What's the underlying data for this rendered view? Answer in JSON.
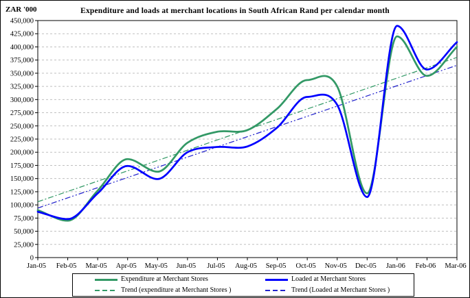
{
  "chart_data": {
    "type": "line",
    "title": "Expenditure and loads at merchant locations in South African Rand per calendar month",
    "y_axis_unit": "ZAR '000",
    "xlabel": "",
    "ylabel": "",
    "ylim": [
      0,
      450000
    ],
    "y_tick_step": 25000,
    "y_tick_labels": [
      "0",
      "25,000",
      "50,000",
      "75,000",
      "100,000",
      "125,000",
      "150,000",
      "175,000",
      "200,000",
      "225,000",
      "250,000",
      "275,000",
      "300,000",
      "325,000",
      "350,000",
      "375,000",
      "400,000",
      "425,000",
      "450,000"
    ],
    "grid": "horizontal-dashed",
    "gridline_color": "#bfbfbf",
    "axis_color": "#000000",
    "legend_position": "bottom",
    "categories": [
      "Jan-05",
      "Feb-05",
      "Mar-05",
      "Apr-05",
      "May-05",
      "Jun-05",
      "Jul-05",
      "Aug-05",
      "Sep-05",
      "Oct-05",
      "Nov-05",
      "Dec-05",
      "Jan-06",
      "Feb-06",
      "Mar-06"
    ],
    "series": [
      {
        "name": "Expenditure at Merchant Stores",
        "type": "smooth-line",
        "color": "#339966",
        "width": 2.75,
        "values": [
          90000,
          70000,
          127000,
          187000,
          163000,
          218000,
          239000,
          242000,
          283000,
          337000,
          325000,
          122000,
          420000,
          345000,
          400000
        ]
      },
      {
        "name": "Loaded at Merchant Stores",
        "type": "smooth-line",
        "color": "#0000ff",
        "width": 2.75,
        "values": [
          87000,
          73000,
          122000,
          174000,
          149000,
          200000,
          210000,
          211000,
          247000,
          305000,
          290000,
          115000,
          440000,
          357000,
          409000
        ]
      },
      {
        "name": "Trend (expenditure at Merchant Stores )",
        "type": "linear-trend",
        "color": "#339966",
        "width": 1.25,
        "dash": "8 3 2 3",
        "endpoints": [
          106000,
          380000
        ]
      },
      {
        "name": "Trend (Loaded at Merchant Stores )",
        "type": "linear-trend",
        "color": "#2222cc",
        "width": 1.25,
        "dash": "8 3 2 3 2 3",
        "endpoints": [
          94000,
          365000
        ]
      }
    ]
  }
}
